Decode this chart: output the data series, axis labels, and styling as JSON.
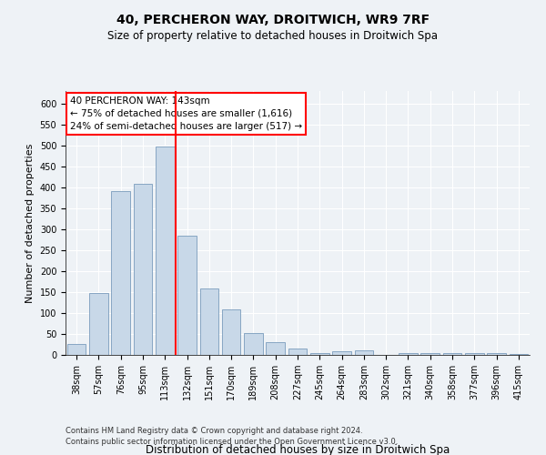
{
  "title": "40, PERCHERON WAY, DROITWICH, WR9 7RF",
  "subtitle": "Size of property relative to detached houses in Droitwich Spa",
  "xlabel": "Distribution of detached houses by size in Droitwich Spa",
  "ylabel": "Number of detached properties",
  "bar_color": "#c8d8e8",
  "bar_edge_color": "#7a9cbc",
  "categories": [
    "38sqm",
    "57sqm",
    "76sqm",
    "95sqm",
    "113sqm",
    "132sqm",
    "151sqm",
    "170sqm",
    "189sqm",
    "208sqm",
    "227sqm",
    "245sqm",
    "264sqm",
    "283sqm",
    "302sqm",
    "321sqm",
    "340sqm",
    "358sqm",
    "377sqm",
    "396sqm",
    "415sqm"
  ],
  "values": [
    25,
    148,
    390,
    408,
    498,
    285,
    158,
    108,
    53,
    30,
    16,
    5,
    8,
    10,
    0,
    5,
    5,
    5,
    5,
    5,
    2
  ],
  "ylim": [
    0,
    630
  ],
  "yticks": [
    0,
    50,
    100,
    150,
    200,
    250,
    300,
    350,
    400,
    450,
    500,
    550,
    600
  ],
  "property_label": "40 PERCHERON WAY: 143sqm",
  "annotation_line1": "← 75% of detached houses are smaller (1,616)",
  "annotation_line2": "24% of semi-detached houses are larger (517) →",
  "vline_bin_index": 5,
  "footer1": "Contains HM Land Registry data © Crown copyright and database right 2024.",
  "footer2": "Contains public sector information licensed under the Open Government Licence v3.0.",
  "background_color": "#eef2f6",
  "plot_background": "#eef2f6",
  "grid_color": "#ffffff",
  "title_fontsize": 10,
  "subtitle_fontsize": 8.5,
  "ylabel_fontsize": 8,
  "xlabel_fontsize": 8.5,
  "tick_fontsize": 7,
  "annot_fontsize": 7.5,
  "footer_fontsize": 6
}
